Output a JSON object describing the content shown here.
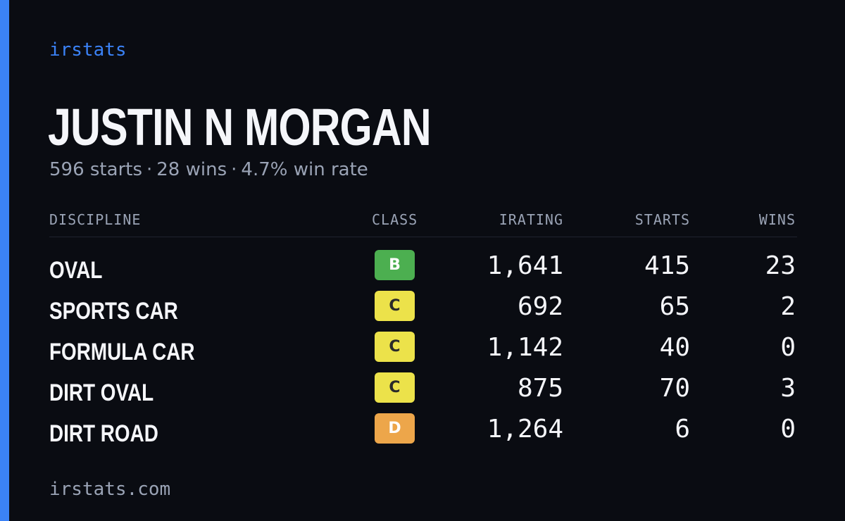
{
  "brand": "irstats",
  "driver": {
    "name": "JUSTIN N MORGAN",
    "starts_text": "596 starts",
    "wins_text": "28 wins",
    "win_rate_text": "4.7% win rate",
    "separator": "·"
  },
  "table": {
    "headers": {
      "discipline": "DISCIPLINE",
      "class": "CLASS",
      "irating": "IRATING",
      "starts": "STARTS",
      "wins": "WINS"
    },
    "rows": [
      {
        "discipline": "OVAL",
        "class": "B",
        "class_color": "#4caf50",
        "class_text_color": "#ffffff",
        "irating": "1,641",
        "starts": "415",
        "wins": "23"
      },
      {
        "discipline": "SPORTS CAR",
        "class": "C",
        "class_color": "#ece24a",
        "class_text_color": "#2a2a2a",
        "irating": "692",
        "starts": "65",
        "wins": "2"
      },
      {
        "discipline": "FORMULA CAR",
        "class": "C",
        "class_color": "#ece24a",
        "class_text_color": "#2a2a2a",
        "irating": "1,142",
        "starts": "40",
        "wins": "0"
      },
      {
        "discipline": "DIRT OVAL",
        "class": "C",
        "class_color": "#ece24a",
        "class_text_color": "#2a2a2a",
        "irating": "875",
        "starts": "70",
        "wins": "3"
      },
      {
        "discipline": "DIRT ROAD",
        "class": "D",
        "class_color": "#eda64a",
        "class_text_color": "#ffffff",
        "irating": "1,264",
        "starts": "6",
        "wins": "0"
      }
    ]
  },
  "footer": "irstats.com",
  "colors": {
    "background": "#0a0c12",
    "accent": "#3b82f6",
    "muted_text": "#9aa3b5",
    "primary_text": "#f5f6fa"
  }
}
